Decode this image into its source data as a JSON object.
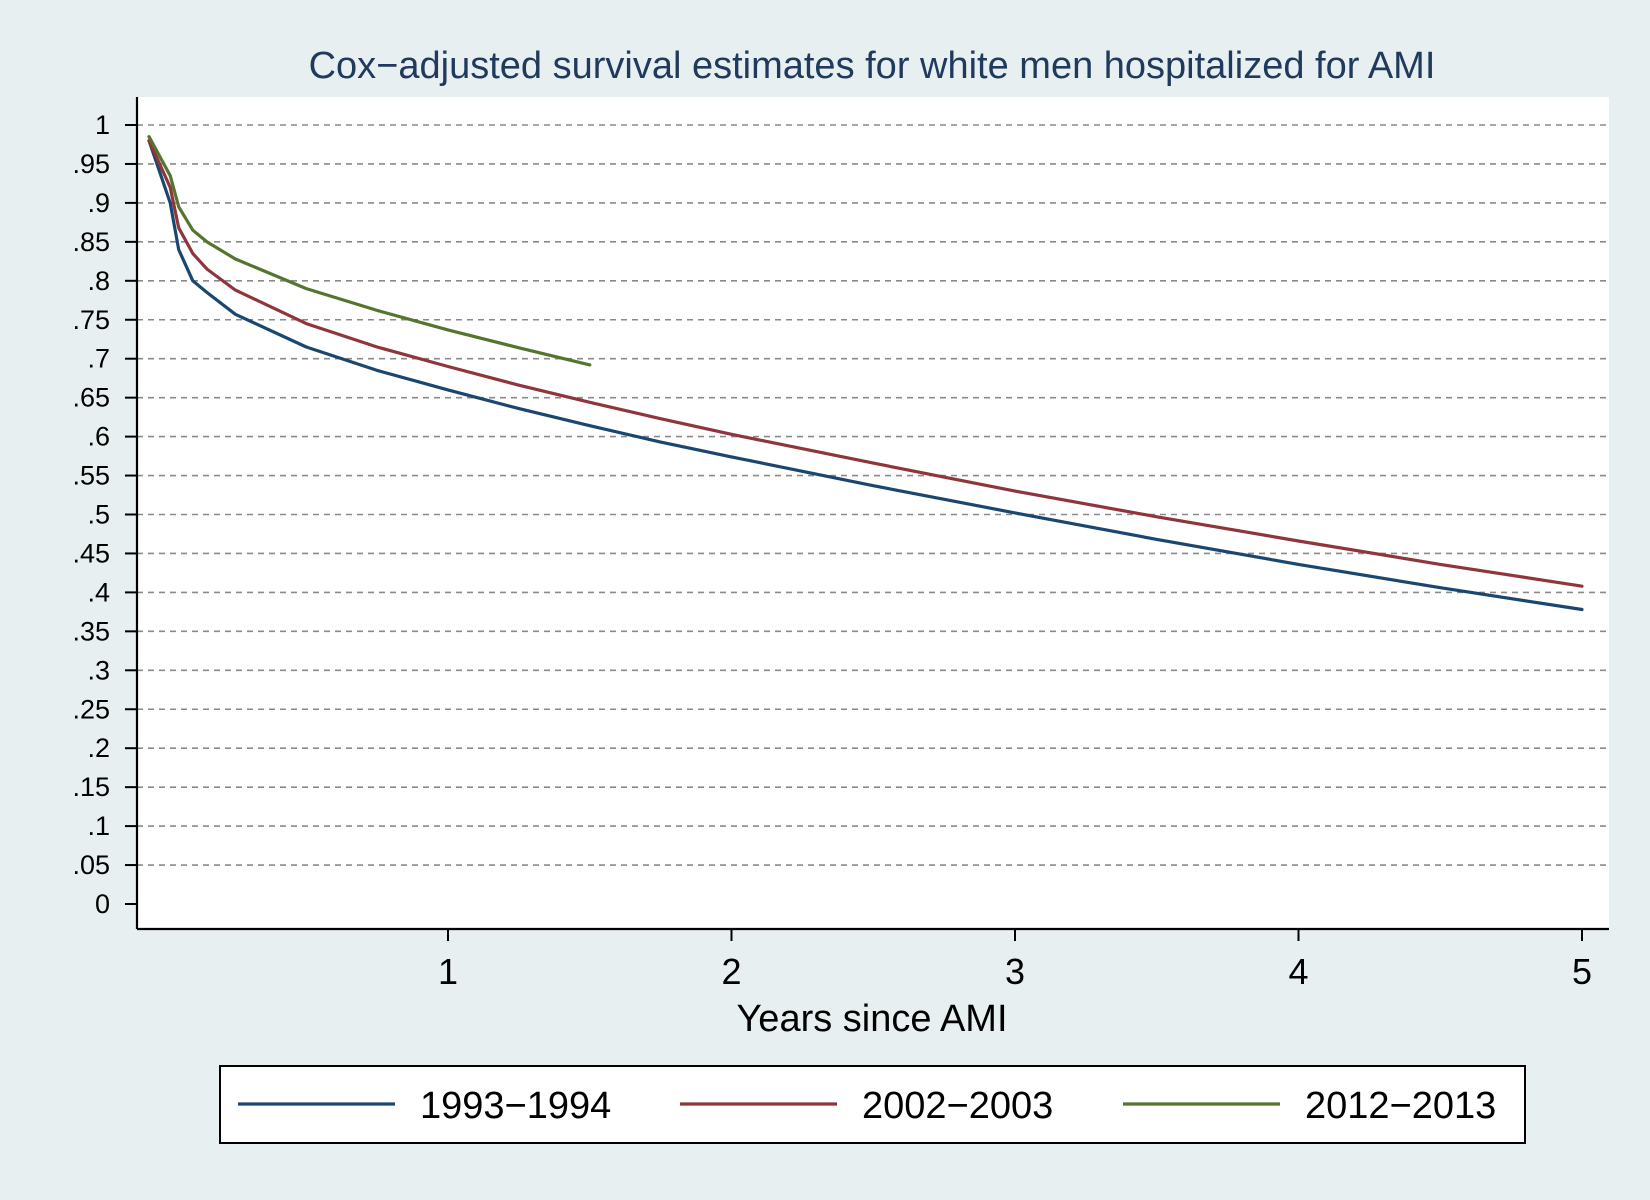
{
  "chart_data": {
    "type": "line",
    "title": "Cox−adjusted survival estimates for white men hospitalized for AMI",
    "xlabel": "Years since AMI",
    "ylabel": "",
    "xlim": [
      0,
      5.1
    ],
    "ylim": [
      0,
      1
    ],
    "xticks": [
      1,
      2,
      3,
      4,
      5
    ],
    "xtick_labels": [
      "1",
      "2",
      "3",
      "4",
      "5"
    ],
    "yticks": [
      0,
      0.05,
      0.1,
      0.15,
      0.2,
      0.25,
      0.3,
      0.35,
      0.4,
      0.45,
      0.5,
      0.55,
      0.6,
      0.65,
      0.7,
      0.75,
      0.8,
      0.85,
      0.9,
      0.95,
      1
    ],
    "ytick_labels": [
      "0",
      ".05",
      ".1",
      ".15",
      ".2",
      ".25",
      ".3",
      ".35",
      ".4",
      ".45",
      ".5",
      ".55",
      ".6",
      ".65",
      ".7",
      ".75",
      ".8",
      ".85",
      ".9",
      ".95",
      "1"
    ],
    "grid": true,
    "legend_position": "bottom",
    "series": [
      {
        "name": "1993−1994",
        "color": "#1a476f",
        "points": [
          [
            0.0,
            0.98
          ],
          [
            0.02,
            0.9
          ],
          [
            0.05,
            0.84
          ],
          [
            0.1,
            0.8
          ],
          [
            0.15,
            0.785
          ],
          [
            0.25,
            0.757
          ],
          [
            0.5,
            0.715
          ],
          [
            0.75,
            0.685
          ],
          [
            1.0,
            0.66
          ],
          [
            1.25,
            0.636
          ],
          [
            1.5,
            0.614
          ],
          [
            1.75,
            0.593
          ],
          [
            2.0,
            0.574
          ],
          [
            2.5,
            0.537
          ],
          [
            3.0,
            0.502
          ],
          [
            3.5,
            0.468
          ],
          [
            4.0,
            0.436
          ],
          [
            4.5,
            0.406
          ],
          [
            5.0,
            0.378
          ]
        ]
      },
      {
        "name": "2002−2003",
        "color": "#90353b",
        "points": [
          [
            0.0,
            0.98
          ],
          [
            0.02,
            0.92
          ],
          [
            0.05,
            0.868
          ],
          [
            0.1,
            0.835
          ],
          [
            0.15,
            0.815
          ],
          [
            0.25,
            0.788
          ],
          [
            0.5,
            0.745
          ],
          [
            0.75,
            0.715
          ],
          [
            1.0,
            0.69
          ],
          [
            1.25,
            0.666
          ],
          [
            1.5,
            0.644
          ],
          [
            1.75,
            0.623
          ],
          [
            2.0,
            0.603
          ],
          [
            2.5,
            0.566
          ],
          [
            3.0,
            0.53
          ],
          [
            3.5,
            0.497
          ],
          [
            4.0,
            0.466
          ],
          [
            4.5,
            0.436
          ],
          [
            5.0,
            0.408
          ]
        ]
      },
      {
        "name": "2012−2013",
        "color": "#55752f",
        "points": [
          [
            0.0,
            0.985
          ],
          [
            0.02,
            0.935
          ],
          [
            0.05,
            0.895
          ],
          [
            0.1,
            0.865
          ],
          [
            0.15,
            0.85
          ],
          [
            0.25,
            0.828
          ],
          [
            0.5,
            0.79
          ],
          [
            0.75,
            0.762
          ],
          [
            1.0,
            0.737
          ],
          [
            1.25,
            0.714
          ],
          [
            1.5,
            0.692
          ]
        ]
      }
    ]
  }
}
